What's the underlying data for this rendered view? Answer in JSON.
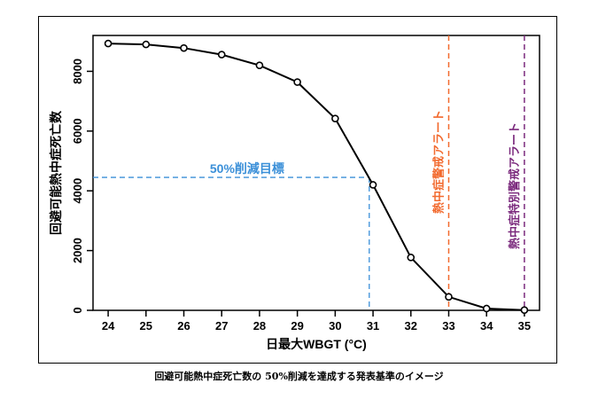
{
  "caption": "回避可能熱中症死亡数の 50%削減を達成する発表基準のイメージ",
  "chart_data": {
    "type": "line",
    "xlabel": "日最大WBGT (°C)",
    "ylabel": "回避可能熱中症死亡数",
    "x": [
      24,
      25,
      26,
      27,
      28,
      29,
      30,
      31,
      32,
      33,
      34,
      35
    ],
    "series": [
      {
        "values": [
          8930,
          8900,
          8780,
          8560,
          8200,
          7640,
          6420,
          4200,
          1770,
          450,
          60,
          10
        ]
      }
    ],
    "xlim": [
      23.6,
      35.4
    ],
    "ylim": [
      0,
      9200
    ],
    "xticks": [
      "24",
      "25",
      "26",
      "27",
      "28",
      "29",
      "30",
      "31",
      "32",
      "33",
      "34",
      "35"
    ],
    "yticks": [
      "0",
      "2000",
      "4000",
      "6000",
      "8000"
    ],
    "grid": false,
    "annotations": [
      {
        "label": "50%削減目標",
        "x_end": 30.9,
        "y": 4450,
        "color": "#3a8fd8"
      },
      {
        "label": "熱中症警戒アラート",
        "x": 33,
        "color": "#f26a2e"
      },
      {
        "label": "熱中症特別警戒アラート",
        "x": 35,
        "color": "#7b2a7d"
      }
    ]
  }
}
